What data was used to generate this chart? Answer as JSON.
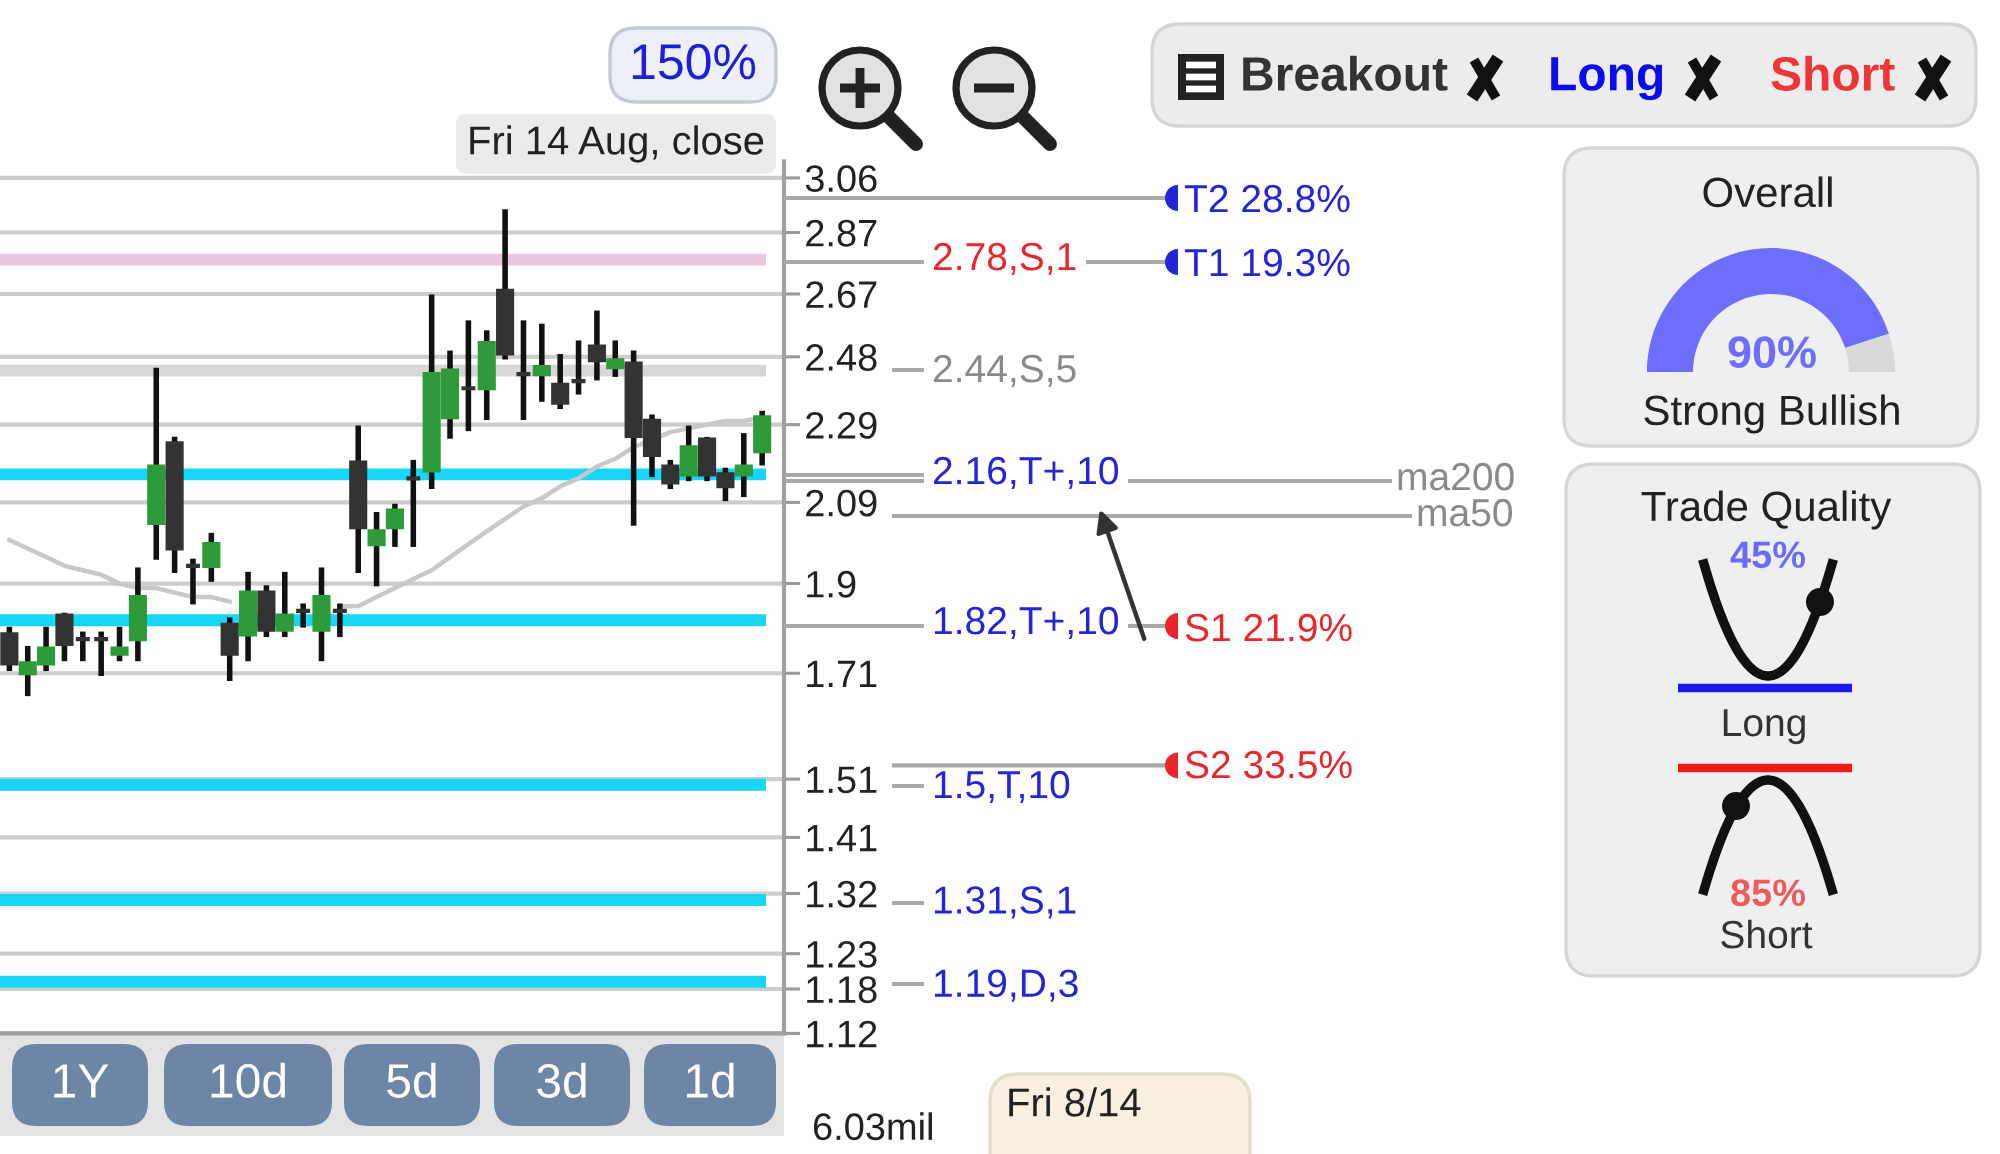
{
  "chart_data": [
    {
      "type": "candlestick",
      "categories": [
        null,
        null,
        null,
        null,
        null,
        null,
        null,
        null,
        null,
        null,
        null,
        null,
        null,
        null,
        null,
        null,
        null,
        null,
        null,
        null,
        null,
        null,
        null,
        null,
        null,
        null,
        null,
        null,
        null,
        null,
        null,
        null,
        null,
        null,
        null,
        null,
        null,
        null,
        null,
        null,
        null,
        null
      ],
      "ohlc": [
        [
          1.79,
          1.8,
          1.72,
          1.73
        ],
        [
          1.71,
          1.76,
          1.67,
          1.73
        ],
        [
          1.73,
          1.8,
          1.72,
          1.76
        ],
        [
          1.83,
          1.83,
          1.74,
          1.77
        ],
        [
          1.78,
          1.79,
          1.74,
          1.78
        ],
        [
          1.78,
          1.79,
          1.71,
          1.78
        ],
        [
          1.75,
          1.8,
          1.74,
          1.76
        ],
        [
          1.78,
          1.93,
          1.74,
          1.87
        ],
        [
          2.04,
          2.44,
          1.96,
          2.18
        ],
        [
          2.24,
          2.25,
          1.93,
          1.98
        ],
        [
          1.94,
          1.95,
          1.86,
          1.94
        ],
        [
          1.94,
          2.01,
          1.91,
          1.99
        ],
        [
          1.81,
          1.82,
          1.7,
          1.75
        ],
        [
          1.79,
          1.92,
          1.74,
          1.88
        ],
        [
          1.88,
          1.89,
          1.79,
          1.8
        ],
        [
          1.8,
          1.92,
          1.79,
          1.83
        ],
        [
          1.84,
          1.85,
          1.81,
          1.84
        ],
        [
          1.8,
          1.93,
          1.74,
          1.87
        ],
        [
          1.84,
          1.85,
          1.79,
          1.84
        ],
        [
          2.19,
          2.28,
          1.93,
          2.03
        ],
        [
          1.99,
          2.06,
          1.9,
          2.02
        ],
        [
          2.03,
          2.08,
          1.99,
          2.07
        ],
        [
          2.15,
          2.19,
          1.99,
          2.15
        ],
        [
          2.17,
          2.66,
          2.13,
          2.43
        ],
        [
          2.31,
          2.49,
          2.26,
          2.44
        ],
        [
          2.39,
          2.58,
          2.28,
          2.39
        ],
        [
          2.39,
          2.55,
          2.31,
          2.52
        ],
        [
          2.68,
          2.94,
          2.48,
          2.49
        ],
        [
          2.43,
          2.58,
          2.31,
          2.43
        ],
        [
          2.43,
          2.57,
          2.36,
          2.45
        ],
        [
          2.4,
          2.48,
          2.34,
          2.35
        ],
        [
          2.41,
          2.52,
          2.38,
          2.41
        ],
        [
          2.51,
          2.61,
          2.42,
          2.47
        ],
        [
          2.45,
          2.52,
          2.43,
          2.47
        ],
        [
          2.46,
          2.49,
          2.04,
          2.26
        ],
        [
          2.3,
          2.31,
          2.16,
          2.21
        ],
        [
          2.18,
          2.19,
          2.13,
          2.14
        ],
        [
          2.16,
          2.28,
          2.15,
          2.23
        ],
        [
          2.25,
          2.25,
          2.15,
          2.16
        ],
        [
          2.16,
          2.17,
          2.1,
          2.13
        ],
        [
          2.16,
          2.26,
          2.11,
          2.18
        ],
        [
          2.22,
          2.32,
          2.19,
          2.31
        ]
      ],
      "colors": [
        "#333333",
        "#2e9a3a",
        "#2e9a3a",
        "#333333",
        "#333333",
        "#333333",
        "#2e9a3a",
        "#2e9a3a",
        "#2e9a3a",
        "#333333",
        "#333333",
        "#2e9a3a",
        "#333333",
        "#2e9a3a",
        "#333333",
        "#2e9a3a",
        "#333333",
        "#2e9a3a",
        "#333333",
        "#333333",
        "#2e9a3a",
        "#2e9a3a",
        "#333333",
        "#2e9a3a",
        "#2e9a3a",
        "#333333",
        "#2e9a3a",
        "#333333",
        "#333333",
        "#2e9a3a",
        "#333333",
        "#333333",
        "#333333",
        "#2e9a3a",
        "#333333",
        "#333333",
        "#333333",
        "#2e9a3a",
        "#333333",
        "#333333",
        "#2e9a3a",
        "#2e9a3a"
      ],
      "series": [
        {
          "type": "line",
          "color": "#c8c8c8",
          "values": [
            2.0,
            1.98,
            1.96,
            1.94,
            1.93,
            1.92,
            1.9,
            1.89,
            1.89,
            1.88,
            1.87,
            1.87,
            1.86,
            null,
            null,
            null,
            null,
            null,
            1.85,
            1.85,
            1.87,
            1.89,
            1.91,
            1.93,
            1.96,
            1.99,
            2.02,
            2.05,
            2.08,
            2.1,
            2.13,
            2.15,
            2.18,
            2.2,
            2.23,
            2.25,
            2.27,
            2.28,
            2.29,
            2.3,
            2.3,
            2.31
          ]
        }
      ],
      "log": true,
      "ylim": [
        1.12,
        3.12
      ],
      "yticks": [
        3.06,
        2.87,
        2.67,
        2.48,
        2.29,
        2.09,
        1.9,
        1.71,
        1.51,
        1.41,
        1.32,
        1.23,
        1.18,
        1.12
      ],
      "grid": "y",
      "tick_labels": "y",
      "ref_lines": [
        {
          "axis": "y",
          "value": 2.78,
          "color": "#ecc6dc"
        },
        {
          "axis": "y",
          "value": 2.44,
          "color": "#d7d7d7"
        },
        {
          "axis": "y",
          "value": 2.16,
          "color": "#19d6f7"
        },
        {
          "axis": "y",
          "value": 1.82,
          "color": "#19d6f7"
        },
        {
          "axis": "y",
          "value": 1.5,
          "color": "#19d6f7"
        },
        {
          "axis": "y",
          "value": 1.31,
          "color": "#19d6f7"
        },
        {
          "axis": "y",
          "value": 1.19,
          "color": "#19d6f7"
        }
      ],
      "annotations": [
        "Fri 14 Aug, close",
        "150%",
        "1Y",
        "10d",
        "5d",
        "3d",
        "1d",
        "6.03mil",
        "Fri 8/14"
      ]
    },
    {
      "type": "other",
      "annotations": [
        "T2 28.8%",
        "2.78,S,1",
        "T1 19.3%",
        "2.44,S,5",
        "2.16,T+,10",
        "ma200",
        "ma50",
        "1.82,T+,10",
        "S1 21.9%",
        "S2 33.5%",
        "1.5,T,10",
        "1.31,S,1",
        "1.19,D,3"
      ],
      "colors": [
        "#2424d8",
        "#e8262b",
        "#2424d8",
        "#8a8a8a",
        "#2424d8",
        "#8a8a8a",
        "#8a8a8a",
        "#2424d8",
        "#e8262b",
        "#e8262b",
        "#2424d8",
        "#2424d8",
        "#2424d8"
      ]
    },
    {
      "type": "other",
      "categories": [
        "Breakout",
        "Long",
        "Short"
      ],
      "colors": [
        "#333333",
        "#0b0bef",
        "#ef3535"
      ]
    },
    {
      "type": "donut",
      "title": "Overall",
      "categories": [
        null,
        null
      ],
      "values": [
        90,
        10
      ],
      "colors": [
        "#6e6efc",
        "#d9d9d9"
      ],
      "value_labels": [
        "90%",
        null
      ],
      "annotations": [
        "Strong Bullish"
      ]
    },
    {
      "type": "other",
      "title": "Trade Quality",
      "annotations": [
        "45%",
        "Long",
        "85%",
        "Short"
      ],
      "colors": [
        "#6b6bf7",
        "#333333",
        "#f05a5a",
        "#333333"
      ]
    }
  ]
}
